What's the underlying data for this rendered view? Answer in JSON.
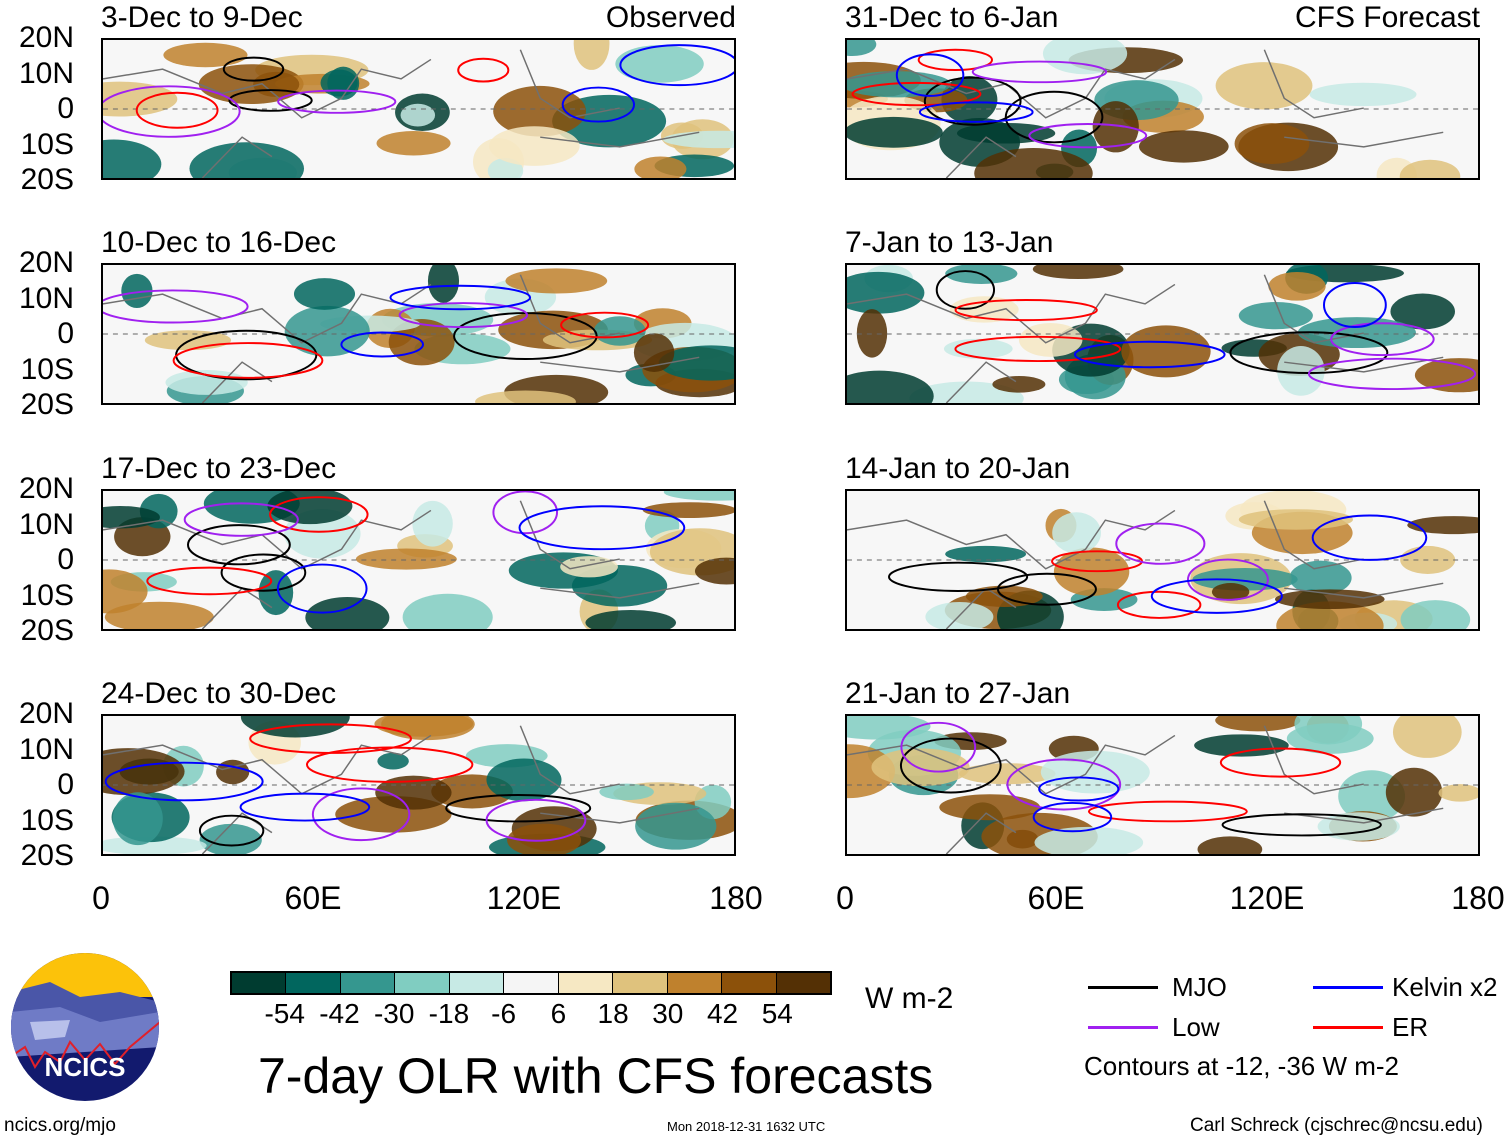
{
  "left_column": {
    "label": "Observed",
    "panels": [
      "3-Dec to 9-Dec",
      "10-Dec to 16-Dec",
      "17-Dec to 23-Dec",
      "24-Dec to 30-Dec"
    ]
  },
  "right_column": {
    "label": "CFS Forecast",
    "panels": [
      "31-Dec to 6-Jan",
      "7-Jan to 13-Jan",
      "14-Jan to 20-Jan",
      "21-Jan to 27-Jan"
    ]
  },
  "lat_labels": [
    "20N",
    "10N",
    "0",
    "10S",
    "20S"
  ],
  "lon_labels": [
    "0",
    "60E",
    "120E",
    "180"
  ],
  "colorbar": {
    "colors": [
      "#003c30",
      "#01665e",
      "#35978f",
      "#80cdc1",
      "#c7eae5",
      "#f5f5f5",
      "#f6e8c3",
      "#dfc27d",
      "#bf812d",
      "#8c510a",
      "#543005"
    ],
    "ticks": [
      "-54",
      "-42",
      "-30",
      "-18",
      "-6",
      "6",
      "18",
      "30",
      "42",
      "54"
    ],
    "units": "W m-2"
  },
  "title": "7-day OLR with CFS forecasts",
  "legend": {
    "items": [
      {
        "label": "MJO",
        "color": "#000000"
      },
      {
        "label": "Kelvin x2",
        "color": "#0000ff"
      },
      {
        "label": "Low",
        "color": "#a020f0"
      },
      {
        "label": "ER",
        "color": "#ff0000"
      }
    ],
    "note": "Contours at -12, -36 W m-2"
  },
  "logo_text": "NCICS",
  "footer": {
    "url": "ncics.org/mjo",
    "timestamp": "Mon 2018-12-31 1632 UTC",
    "credit": "Carl Schreck (cjschrec@ncsu.edu)"
  }
}
